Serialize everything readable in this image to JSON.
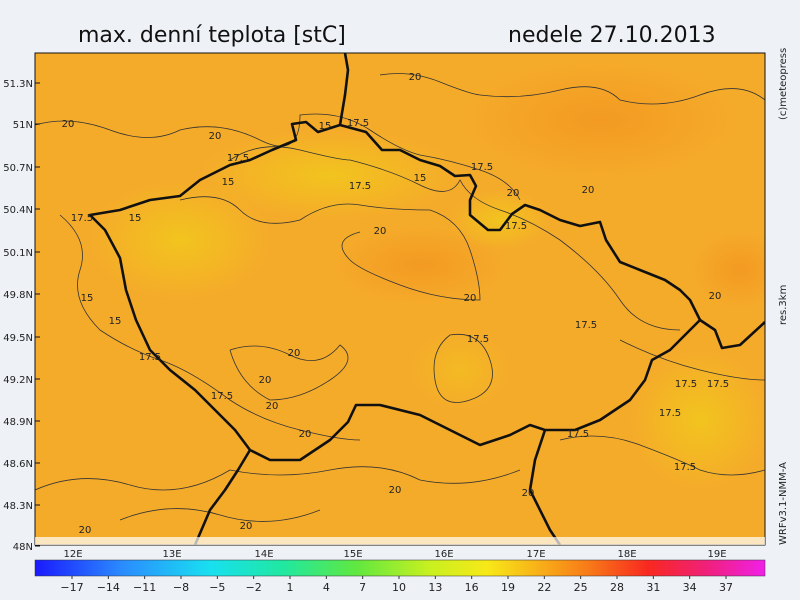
{
  "header": {
    "title": "max. denní teplota [stC]",
    "date": "nedele 27.10.2013"
  },
  "map": {
    "lat_labels": [
      "51.3N",
      "51N",
      "50.7N",
      "50.4N",
      "50.1N",
      "49.8N",
      "49.5N",
      "49.2N",
      "48.9N",
      "48.6N",
      "48.3N",
      "48N"
    ],
    "lon_labels": [
      "12E",
      "13E",
      "14E",
      "15E",
      "16E",
      "17E",
      "18E",
      "19E"
    ],
    "contour_labels": [
      "20",
      "20",
      "20",
      "15",
      "17.5",
      "17.5",
      "15",
      "17.5",
      "15",
      "17.5",
      "20",
      "20",
      "17.5",
      "15",
      "20",
      "17.5",
      "20",
      "20",
      "15",
      "15",
      "17.5",
      "17.5",
      "17.5",
      "20",
      "20",
      "17.5",
      "17.5",
      "17.5",
      "20",
      "17.5",
      "20",
      "17.5",
      "17.5",
      "20",
      "20",
      "20",
      "20"
    ]
  },
  "side": {
    "copyright": "(c)meteopress",
    "resolution": "res.3km",
    "model": "WRFv3.1-NMM-A"
  },
  "colorbar": {
    "ticks": [
      "−17",
      "−14",
      "−11",
      "−8",
      "−5",
      "−2",
      "1",
      "4",
      "7",
      "10",
      "13",
      "16",
      "19",
      "22",
      "25",
      "28",
      "31",
      "34",
      "37"
    ]
  }
}
